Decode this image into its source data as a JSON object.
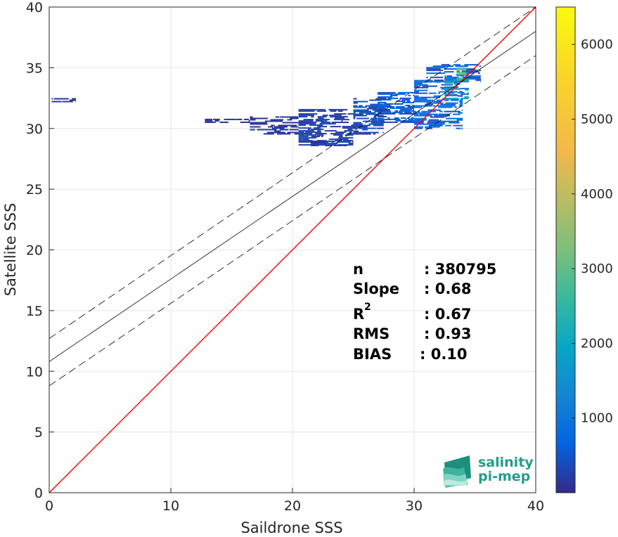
{
  "chart_data": {
    "type": "heatmap",
    "xlabel": "Saildrone SSS",
    "ylabel": "Satellite SSS",
    "xlim": [
      0,
      40
    ],
    "ylim": [
      0,
      40
    ],
    "x_ticks": [
      "0",
      "10",
      "20",
      "30",
      "40"
    ],
    "y_ticks": [
      "0",
      "5",
      "10",
      "15",
      "20",
      "25",
      "30",
      "35",
      "40"
    ],
    "grid": true,
    "colorbar": {
      "colormap": "parula",
      "range": [
        0,
        6500
      ],
      "ticks": [
        "1000",
        "2000",
        "3000",
        "4000",
        "5000",
        "6000"
      ],
      "tick_values": [
        1000,
        2000,
        3000,
        4000,
        5000,
        6000
      ]
    },
    "lines": [
      {
        "style": "identity",
        "color": "#ff0000",
        "x": [
          0,
          40
        ],
        "y": [
          0,
          40
        ]
      },
      {
        "style": "regression",
        "color": "#000000",
        "x": [
          0,
          40
        ],
        "y": [
          10.8,
          38.0
        ]
      },
      {
        "style": "regression-plus",
        "color": "#000000",
        "dashed": true,
        "x": [
          0,
          40
        ],
        "y": [
          12.7,
          40.0
        ]
      },
      {
        "style": "regression-minus",
        "color": "#000000",
        "dashed": true,
        "x": [
          0,
          40
        ],
        "y": [
          8.8,
          36.0
        ]
      }
    ],
    "density_regions": [
      {
        "x": [
          0.2,
          2.2
        ],
        "y": [
          32.2,
          32.5
        ],
        "count": 150
      },
      {
        "x": [
          12.8,
          16.5
        ],
        "y": [
          30.5,
          30.8
        ],
        "count": 120
      },
      {
        "x": [
          16.5,
          20.5
        ],
        "y": [
          29.5,
          31.0
        ],
        "count": 150
      },
      {
        "x": [
          20.5,
          25.0
        ],
        "y": [
          28.7,
          31.6
        ],
        "count": 250
      },
      {
        "x": [
          21.5,
          24.5
        ],
        "y": [
          28.6,
          29.0
        ],
        "count": 200
      },
      {
        "x": [
          25.0,
          27.5
        ],
        "y": [
          29.5,
          32.5
        ],
        "count": 350
      },
      {
        "x": [
          27.0,
          30.0
        ],
        "y": [
          30.5,
          33.0
        ],
        "count": 500
      },
      {
        "x": [
          30.0,
          34.0
        ],
        "y": [
          30.0,
          34.0
        ],
        "count": 700
      },
      {
        "x": [
          31.0,
          35.5
        ],
        "y": [
          33.8,
          35.3
        ],
        "count": 600
      },
      {
        "x": [
          32.5,
          34.5
        ],
        "y": [
          32.5,
          34.5
        ],
        "count": 1700
      },
      {
        "x": [
          33.5,
          34.3
        ],
        "y": [
          34.0,
          35.0
        ],
        "count": 2300
      }
    ],
    "stats": {
      "n": {
        "label": "n",
        "value": ": 380795"
      },
      "slope": {
        "label": "Slope",
        "value": ": 0.68"
      },
      "r2": {
        "label": "R",
        "sup": "2",
        "value": ": 0.67"
      },
      "rms": {
        "label": "RMS",
        "value": ": 0.93"
      },
      "bias": {
        "label": "BIAS",
        "value": ": 0.10"
      }
    }
  },
  "logo": {
    "line1": "salinity",
    "line2": "pi-mep"
  },
  "colors": {
    "identity": "#ff0000",
    "regression": "#000000",
    "grid": "#e6e6e6",
    "logo": "#1f9e8a"
  }
}
